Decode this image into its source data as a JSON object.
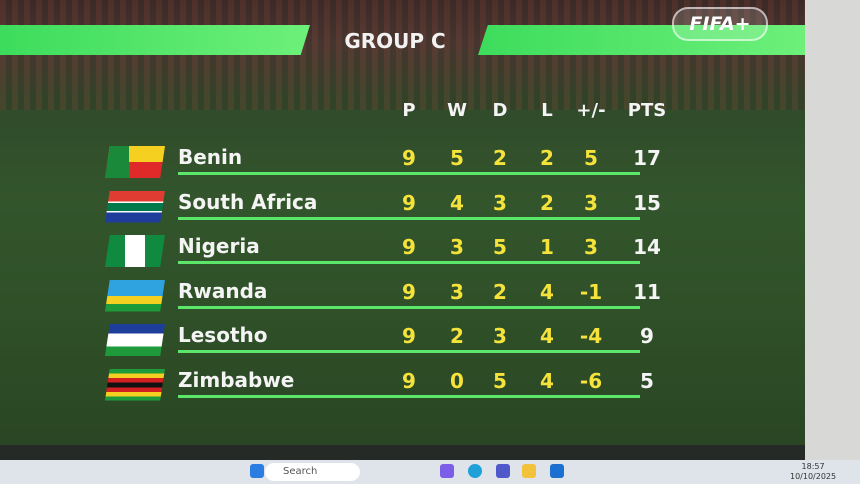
{
  "title": "GROUP C",
  "logo": "FIFA+",
  "columns": [
    "P",
    "W",
    "D",
    "L",
    "+/-",
    "PTS"
  ],
  "colors": {
    "accent": "#4fe264",
    "numbers": "#f5e33c"
  },
  "rows": [
    {
      "team": "Benin",
      "flag": "benin-flag",
      "P": "9",
      "W": "5",
      "D": "2",
      "L": "2",
      "GD": "5",
      "PTS": "17"
    },
    {
      "team": "South Africa",
      "flag": "south-africa-flag",
      "P": "9",
      "W": "4",
      "D": "3",
      "L": "2",
      "GD": "3",
      "PTS": "15"
    },
    {
      "team": "Nigeria",
      "flag": "nigeria-flag",
      "P": "9",
      "W": "3",
      "D": "5",
      "L": "1",
      "GD": "3",
      "PTS": "14"
    },
    {
      "team": "Rwanda",
      "flag": "rwanda-flag",
      "P": "9",
      "W": "3",
      "D": "2",
      "L": "4",
      "GD": "-1",
      "PTS": "11"
    },
    {
      "team": "Lesotho",
      "flag": "lesotho-flag",
      "P": "9",
      "W": "2",
      "D": "3",
      "L": "4",
      "GD": "-4",
      "PTS": "9"
    },
    {
      "team": "Zimbabwe",
      "flag": "zimbabwe-flag",
      "P": "9",
      "W": "0",
      "D": "5",
      "L": "4",
      "GD": "-6",
      "PTS": "5"
    }
  ],
  "taskbar": {
    "search": "Search",
    "time": "18:57",
    "date": "10/10/2025"
  }
}
